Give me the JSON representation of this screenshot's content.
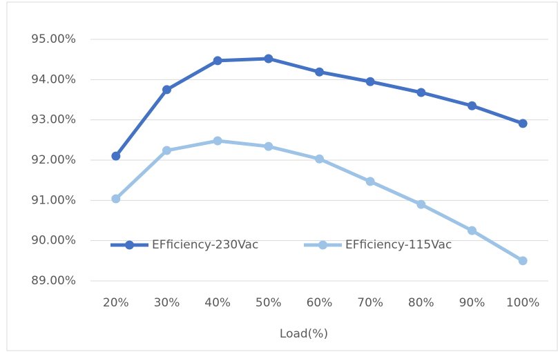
{
  "chart_data": {
    "type": "line",
    "x_label": "Load(%)",
    "categories": [
      "20%",
      "30%",
      "40%",
      "50%",
      "60%",
      "70%",
      "80%",
      "90%",
      "100%"
    ],
    "series": [
      {
        "name": "EFficiency-230Vac",
        "color": "#4472c4",
        "values": [
          92.1,
          93.75,
          94.47,
          94.52,
          94.19,
          93.95,
          93.68,
          93.35,
          92.91
        ]
      },
      {
        "name": "EFficiency-115Vac",
        "color": "#9dc3e6",
        "values": [
          91.04,
          92.24,
          92.48,
          92.34,
          92.03,
          91.47,
          90.9,
          90.25,
          89.5
        ]
      }
    ],
    "ylim": [
      89,
      95
    ],
    "yticks": [
      {
        "value": 89,
        "label": "89.00%"
      },
      {
        "value": 90,
        "label": "90.00%"
      },
      {
        "value": 91,
        "label": "91.00%"
      },
      {
        "value": 92,
        "label": "92.00%"
      },
      {
        "value": 93,
        "label": "93.00%"
      },
      {
        "value": 94,
        "label": "94.00%"
      },
      {
        "value": 95,
        "label": "95.00%"
      }
    ],
    "grid": true,
    "legend": "lower-left"
  }
}
